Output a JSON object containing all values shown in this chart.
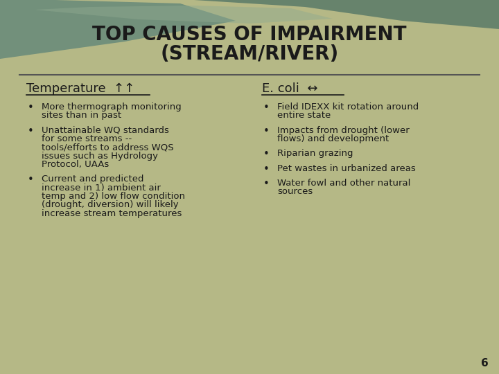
{
  "title_line1": "TOP CAUSES OF IMPAIRMENT",
  "title_line2": "(STREAM/RIVER)",
  "bg_color": "#b5b886",
  "title_color": "#1a1a1a",
  "left_heading": "Temperature  ↑↑",
  "right_heading": "E. coli  ↔",
  "left_bullets": [
    "More thermograph monitoring\nsites than in past",
    "Unattainable WQ standards\nfor some streams --\ntools/efforts to address WQS\nissues such as Hydrology\nProtocol, UAAs",
    "Current and predicted\nincrease in 1) ambient air\ntemp and 2) low flow condition\n(drought, diversion) will likely\nincrease stream temperatures"
  ],
  "right_bullets": [
    "Field IDEXX kit rotation around\nentire state",
    "Impacts from drought (lower\nflows) and development",
    "Riparian grazing",
    "Pet wastes in urbanized areas",
    "Water fowl and other natural\nsources"
  ],
  "page_number": "6",
  "separator_color": "#555555",
  "text_color": "#1a1a1a",
  "heading_underline_color": "#1a1a1a",
  "wave1_color": "#6b8c7a",
  "wave2_color": "#5a7a68",
  "wave3_color": "#8faa90"
}
